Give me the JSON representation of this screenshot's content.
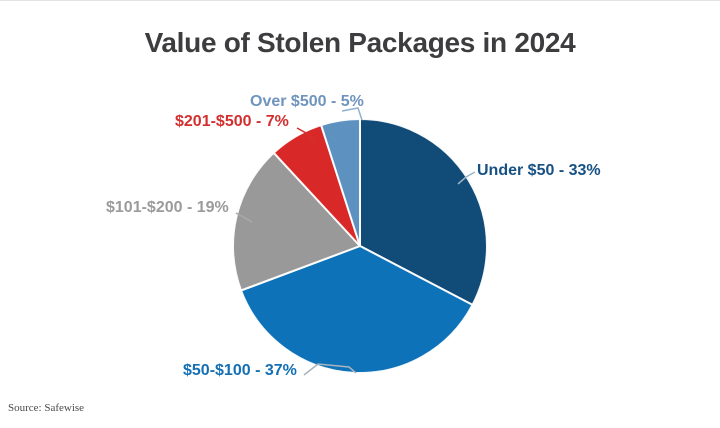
{
  "title": "Value of Stolen Packages in 2024",
  "source": "Source: Safewise",
  "chart_data": {
    "type": "pie",
    "title": "Value of Stolen Packages in 2024",
    "start_angle_deg": -90,
    "direction": "clockwise",
    "legend_position": "labels-around-pie",
    "slices": [
      {
        "category": "Under $50",
        "value": 33,
        "unit": "%",
        "color": "#114b78",
        "label": "Under $50 - 33%",
        "label_color": "#175082"
      },
      {
        "category": "$50-$100",
        "value": 37,
        "unit": "%",
        "color": "#0e72b8",
        "label": "$50-$100 - 37%",
        "label_color": "#1470b4"
      },
      {
        "category": "$101-$200",
        "value": 19,
        "unit": "%",
        "color": "#999999",
        "label": "$101-$200 - 19%",
        "label_color": "#9b9b9b"
      },
      {
        "category": "$201-$500",
        "value": 7,
        "unit": "%",
        "color": "#d82928",
        "label": "$201-$500 - 7%",
        "label_color": "#d2302f"
      },
      {
        "category": "Over $500",
        "value": 5,
        "unit": "%",
        "color": "#5d92c0",
        "label": "Over $500 - 5%",
        "label_color": "#6f94bd"
      }
    ]
  }
}
